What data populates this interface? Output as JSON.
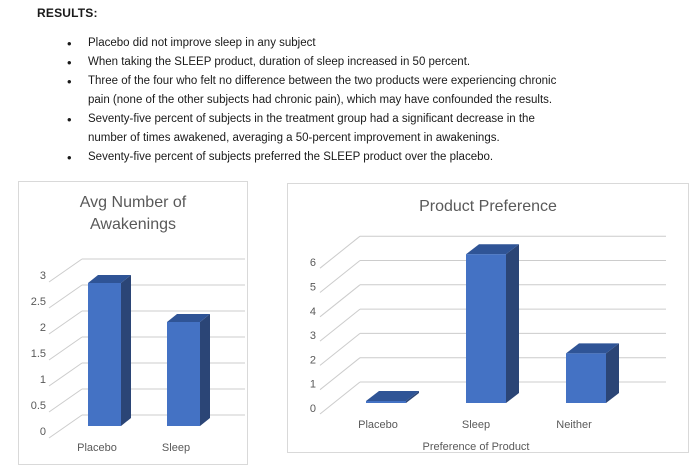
{
  "page": {
    "heading": "RESULTS:",
    "bullets": [
      "Placebo did not improve sleep in any subject",
      "When taking the SLEEP product, duration of sleep increased in 50 percent.",
      "Three of the four who felt no difference between the two products were experiencing chronic\npain (none of the other subjects had chronic pain), which may have confounded the results.",
      "Seventy-five percent of subjects in the treatment group had a significant decrease in the\nnumber of times awakened, averaging a 50-percent improvement in awakenings.",
      "Seventy-five percent of subjects preferred the SLEEP product over the placebo."
    ]
  },
  "colors": {
    "bar_front": "#4472C4",
    "bar_side": "#2B4576",
    "bar_top": "#2F5496",
    "gridline": "#CCCCCC",
    "panel_border": "#D9D9D9",
    "chart_text": "#595959"
  },
  "chart_data": [
    {
      "type": "bar",
      "style": "3d-column",
      "title": "Avg Number of Awakenings",
      "title_lines": [
        "Avg Number of",
        "Awakenings"
      ],
      "categories": [
        "Placebo",
        "Sleep"
      ],
      "values": [
        2.75,
        2
      ],
      "yticks": [
        0,
        0.5,
        1,
        1.5,
        2,
        2.5,
        3
      ],
      "ylim": [
        0,
        3
      ],
      "xlabel": "",
      "ylabel": "",
      "grid": true,
      "legend": false,
      "bar_color": "#4472C4"
    },
    {
      "type": "bar",
      "style": "3d-column",
      "title": "Product Preference",
      "title_lines": [
        "Product Preference"
      ],
      "categories": [
        "Placebo",
        "Sleep",
        "Neither"
      ],
      "values": [
        0,
        6,
        2
      ],
      "yticks": [
        0,
        1,
        2,
        3,
        4,
        5,
        6
      ],
      "ylim": [
        0,
        6
      ],
      "xlabel": "Preference of Product",
      "ylabel": "",
      "grid": true,
      "legend": false,
      "bar_color": "#4472C4"
    }
  ]
}
